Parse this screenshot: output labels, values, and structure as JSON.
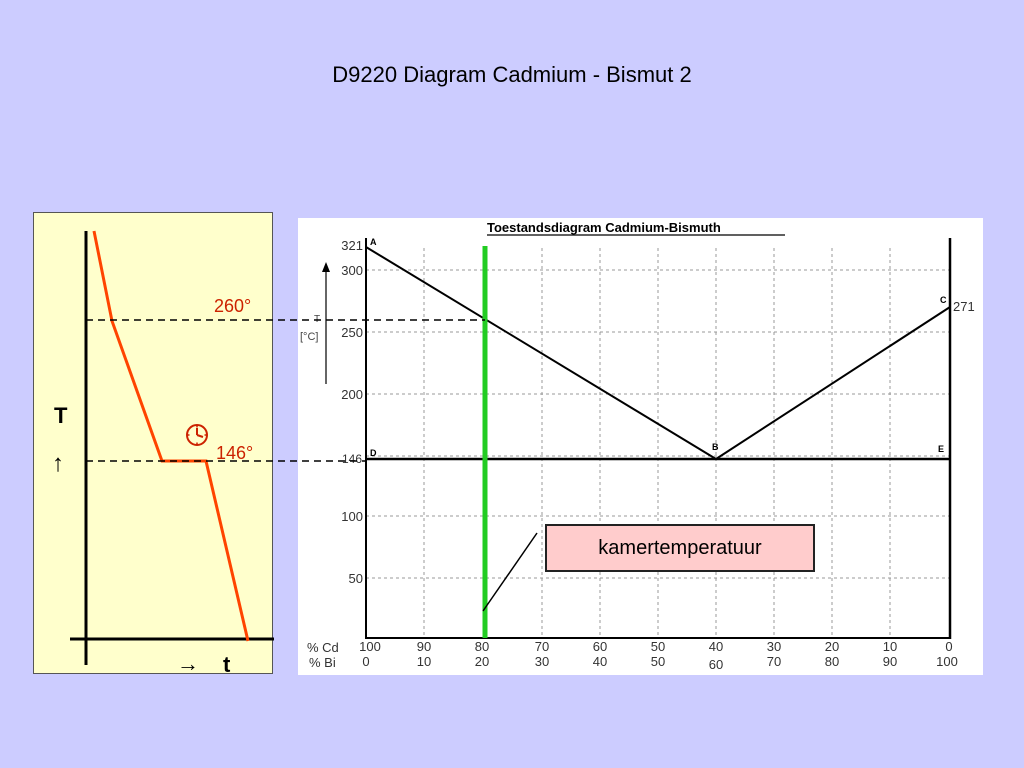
{
  "title": "D9220 Diagram Cadmium - Bismut 2",
  "cooling_curve": {
    "t_axis_label": "T",
    "up_arrow": "↑",
    "time_axis_label": "t",
    "right_arrow": "→",
    "temp_upper": "260°",
    "temp_lower": "146°",
    "clock_icon": "clock-icon",
    "curve_color": "#ff4400",
    "label_color": "#cc2200"
  },
  "phase_diagram": {
    "title": "Toestandsdiagram Cadmium-Bismuth",
    "axis_label_line1": "T",
    "axis_label_line2": "[°C]",
    "y_ticks": [
      "321",
      "300",
      "250",
      "200",
      "146",
      "100",
      "50"
    ],
    "right_value": "271",
    "points": {
      "a": "A",
      "b": "B",
      "c": "C",
      "d": "D",
      "e": "E"
    },
    "cd_label": "% Cd",
    "bi_label": "% Bi",
    "cd_values": [
      "100",
      "90",
      "80",
      "70",
      "60",
      "50",
      "40",
      "30",
      "20",
      "10",
      "0"
    ],
    "bi_values": [
      "0",
      "10",
      "20",
      "30",
      "40",
      "50",
      "60",
      "70",
      "80",
      "90",
      "100"
    ],
    "composition_line_color": "#22cc22"
  },
  "callout": "kamertemperatuur"
}
